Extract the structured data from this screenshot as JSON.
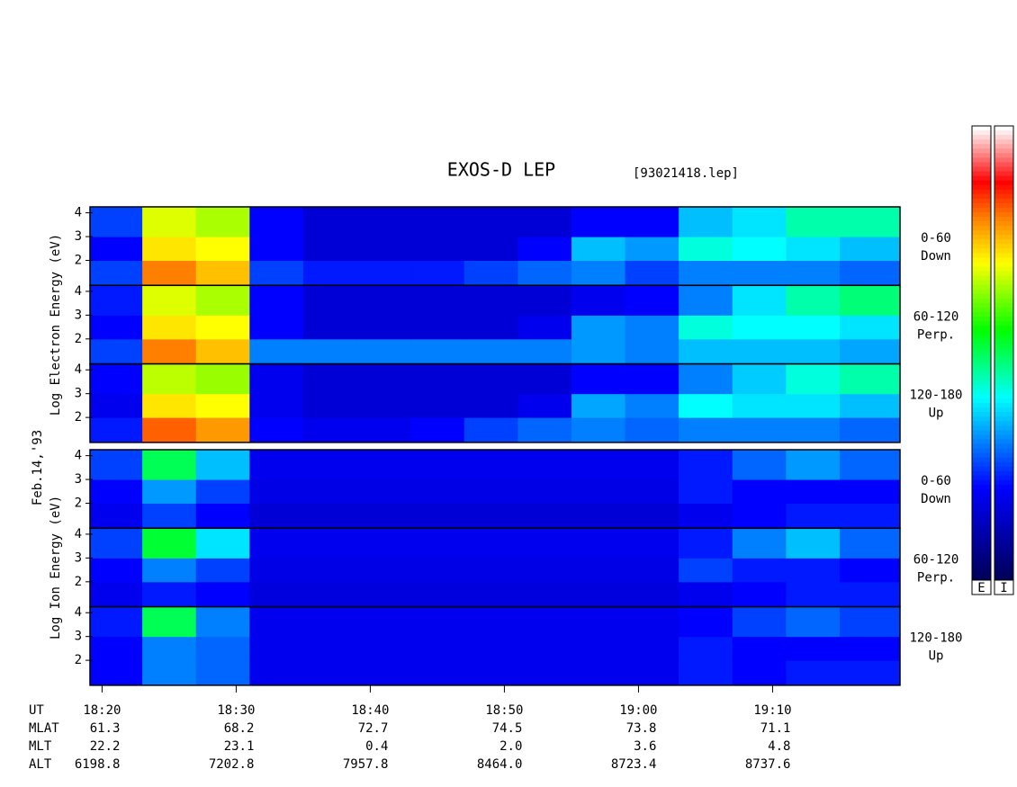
{
  "chart_data": {
    "type": "heatmap",
    "title": "EXOS-D LEP",
    "subtitle": "[93021418.lep]",
    "date_label": "Feb.14,'93",
    "xlim": [
      1099.1,
      1159.5
    ],
    "xticks": [
      {
        "value": 1100,
        "label": "18:20"
      },
      {
        "value": 1110,
        "label": "18:30"
      },
      {
        "value": 1120,
        "label": "18:40"
      },
      {
        "value": 1130,
        "label": "18:50"
      },
      {
        "value": 1140,
        "label": "19:00"
      },
      {
        "value": 1150,
        "label": "19:10"
      }
    ],
    "time_bins": [
      1099.1,
      1103,
      1107,
      1111,
      1115,
      1119,
      1123,
      1127,
      1131,
      1135,
      1139,
      1143,
      1147,
      1151,
      1155,
      1159.5
    ],
    "colorscale": [
      [
        0,
        "#00005a"
      ],
      [
        0.2,
        "#0000ff"
      ],
      [
        0.4,
        "#00ffff"
      ],
      [
        0.55,
        "#00ff00"
      ],
      [
        0.7,
        "#ffff00"
      ],
      [
        0.8,
        "#ff8000"
      ],
      [
        0.88,
        "#ff0000"
      ],
      [
        1,
        "#ffffff"
      ]
    ],
    "colorbar_labels": [
      "E",
      "I"
    ],
    "panel_groups": [
      {
        "y_label": "Log Electron Energy (eV)",
        "panels": [
          {
            "label_lines": [
              "0-60",
              "Down"
            ],
            "ylim": [
              0.95,
              4.25
            ],
            "yticks": [
              2,
              3,
              4
            ],
            "energy_bins": [
              0.95,
              2,
              3,
              4.25
            ],
            "values": [
              [
                0.25,
                0.8,
                0.75,
                0.25,
                0.22,
                0.22,
                0.22,
                0.25,
                0.28,
                0.3,
                0.25,
                0.3,
                0.3,
                0.3,
                0.28
              ],
              [
                0.2,
                0.72,
                0.7,
                0.2,
                0.15,
                0.15,
                0.15,
                0.15,
                0.2,
                0.35,
                0.32,
                0.42,
                0.4,
                0.38,
                0.35
              ],
              [
                0.25,
                0.68,
                0.65,
                0.2,
                0.15,
                0.15,
                0.15,
                0.15,
                0.15,
                0.2,
                0.2,
                0.35,
                0.38,
                0.45,
                0.45
              ]
            ]
          },
          {
            "label_lines": [
              "60-120",
              "Perp."
            ],
            "ylim": [
              0.95,
              4.25
            ],
            "yticks": [
              2,
              3,
              4
            ],
            "energy_bins": [
              0.95,
              2,
              3,
              4.25
            ],
            "values": [
              [
                0.25,
                0.8,
                0.75,
                0.3,
                0.3,
                0.3,
                0.3,
                0.3,
                0.3,
                0.32,
                0.3,
                0.35,
                0.35,
                0.35,
                0.33
              ],
              [
                0.2,
                0.72,
                0.7,
                0.2,
                0.15,
                0.15,
                0.15,
                0.15,
                0.18,
                0.32,
                0.3,
                0.42,
                0.4,
                0.4,
                0.38
              ],
              [
                0.22,
                0.68,
                0.65,
                0.2,
                0.15,
                0.15,
                0.15,
                0.15,
                0.15,
                0.18,
                0.2,
                0.3,
                0.38,
                0.45,
                0.48
              ]
            ]
          },
          {
            "label_lines": [
              "120-180",
              "Up"
            ],
            "ylim": [
              0.95,
              4.25
            ],
            "yticks": [
              2,
              3,
              4
            ],
            "energy_bins": [
              0.95,
              2,
              3,
              4.25
            ],
            "values": [
              [
                0.22,
                0.82,
                0.78,
                0.2,
                0.18,
                0.18,
                0.2,
                0.25,
                0.28,
                0.3,
                0.28,
                0.3,
                0.3,
                0.3,
                0.28
              ],
              [
                0.18,
                0.72,
                0.7,
                0.18,
                0.15,
                0.15,
                0.15,
                0.15,
                0.18,
                0.33,
                0.3,
                0.4,
                0.38,
                0.38,
                0.35
              ],
              [
                0.2,
                0.66,
                0.64,
                0.18,
                0.15,
                0.15,
                0.15,
                0.15,
                0.15,
                0.2,
                0.2,
                0.3,
                0.36,
                0.42,
                0.45
              ]
            ]
          }
        ]
      },
      {
        "y_label": "Log Ion Energy (eV)",
        "panels": [
          {
            "label_lines": [
              "0-60",
              "Down"
            ],
            "ylim": [
              0.95,
              4.25
            ],
            "yticks": [
              2,
              3,
              4
            ],
            "energy_bins": [
              0.95,
              2,
              3,
              4.25
            ],
            "values": [
              [
                0.18,
                0.25,
                0.2,
                0.15,
                0.15,
                0.15,
                0.15,
                0.15,
                0.15,
                0.15,
                0.15,
                0.18,
                0.2,
                0.22,
                0.22
              ],
              [
                0.2,
                0.32,
                0.25,
                0.17,
                0.17,
                0.17,
                0.17,
                0.17,
                0.17,
                0.17,
                0.17,
                0.22,
                0.2,
                0.2,
                0.2
              ],
              [
                0.25,
                0.5,
                0.35,
                0.18,
                0.18,
                0.18,
                0.18,
                0.18,
                0.18,
                0.18,
                0.18,
                0.22,
                0.28,
                0.32,
                0.28
              ]
            ]
          },
          {
            "label_lines": [
              "60-120",
              "Perp."
            ],
            "ylim": [
              0.95,
              4.25
            ],
            "yticks": [
              2,
              3,
              4
            ],
            "energy_bins": [
              0.95,
              2,
              3,
              4.25
            ],
            "values": [
              [
                0.18,
                0.22,
                0.2,
                0.16,
                0.16,
                0.16,
                0.16,
                0.16,
                0.16,
                0.16,
                0.16,
                0.18,
                0.2,
                0.22,
                0.22
              ],
              [
                0.2,
                0.3,
                0.25,
                0.17,
                0.17,
                0.17,
                0.17,
                0.17,
                0.17,
                0.17,
                0.17,
                0.25,
                0.22,
                0.22,
                0.2
              ],
              [
                0.25,
                0.52,
                0.38,
                0.18,
                0.18,
                0.18,
                0.18,
                0.18,
                0.18,
                0.18,
                0.18,
                0.22,
                0.3,
                0.35,
                0.28
              ]
            ]
          },
          {
            "label_lines": [
              "120-180",
              "Up"
            ],
            "ylim": [
              0.95,
              4.25
            ],
            "yticks": [
              2,
              3,
              4
            ],
            "energy_bins": [
              0.95,
              2,
              3,
              4.25
            ],
            "values": [
              [
                0.2,
                0.3,
                0.28,
                0.18,
                0.18,
                0.18,
                0.18,
                0.18,
                0.18,
                0.18,
                0.18,
                0.22,
                0.2,
                0.22,
                0.22
              ],
              [
                0.2,
                0.3,
                0.28,
                0.18,
                0.18,
                0.18,
                0.18,
                0.18,
                0.18,
                0.18,
                0.18,
                0.22,
                0.2,
                0.2,
                0.2
              ],
              [
                0.22,
                0.5,
                0.3,
                0.18,
                0.18,
                0.18,
                0.18,
                0.18,
                0.18,
                0.18,
                0.18,
                0.2,
                0.25,
                0.28,
                0.25
              ]
            ]
          }
        ]
      }
    ],
    "orbit_table": {
      "row_labels": [
        "UT",
        "MLAT",
        "MLT",
        "ALT"
      ],
      "rows": [
        [
          "61.3",
          "68.2",
          "72.7",
          "74.5",
          "73.8",
          "71.1"
        ],
        [
          "22.2",
          "23.1",
          "0.4",
          "2.0",
          "3.6",
          "4.8"
        ],
        [
          "6198.8",
          "7202.8",
          "7957.8",
          "8464.0",
          "8723.4",
          "8737.6"
        ]
      ]
    }
  }
}
